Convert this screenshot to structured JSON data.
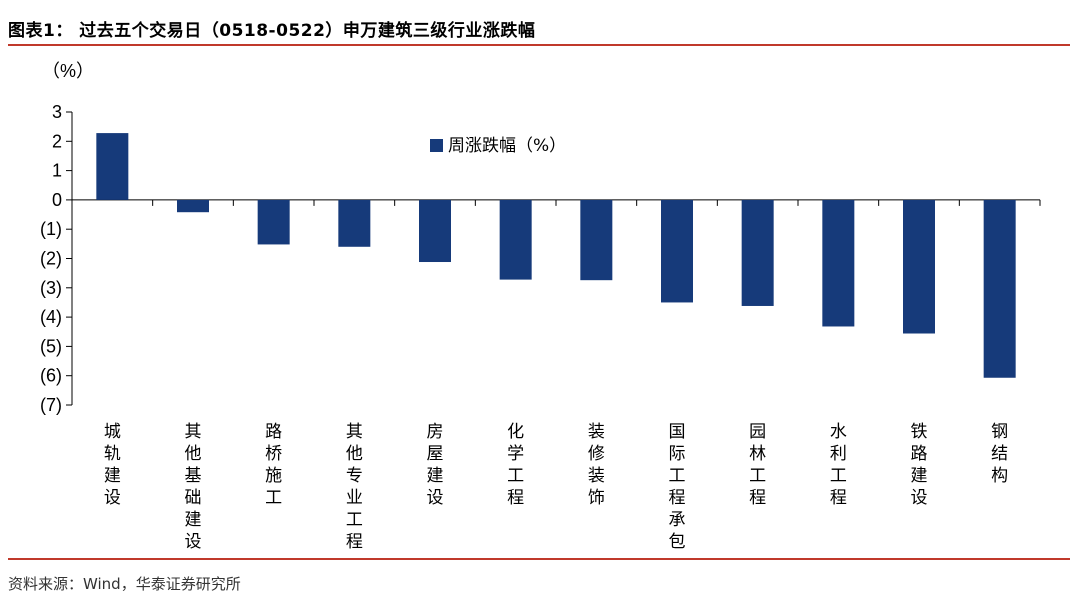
{
  "title": "图表1：  过去五个交易日（0518-0522）申万建筑三级行业涨跌幅",
  "source": "资料来源：Wind，华泰证券研究所",
  "chart_data": {
    "type": "bar",
    "unit_label": "（%）",
    "categories": [
      "城轨建设",
      "其他基础建设",
      "路桥施工",
      "其他专业工程",
      "房屋建设",
      "化学工程",
      "装修装饰",
      "国际工程承包",
      "园林工程",
      "水利工程",
      "铁路建设",
      "钢结构"
    ],
    "series": [
      {
        "name": "周涨跌幅（%）",
        "values": [
          2.28,
          -0.42,
          -1.52,
          -1.6,
          -2.12,
          -2.72,
          -2.74,
          -3.5,
          -3.62,
          -4.32,
          -4.56,
          -6.07
        ]
      }
    ],
    "ylim": [
      -7,
      3
    ],
    "yticks": [
      "3",
      "2",
      "1",
      "0",
      "(1)",
      "(2)",
      "(3)",
      "(4)",
      "(5)",
      "(6)",
      "(7)"
    ],
    "grid": false,
    "legend_position": "top-center",
    "bar_color": "#163a7a"
  }
}
